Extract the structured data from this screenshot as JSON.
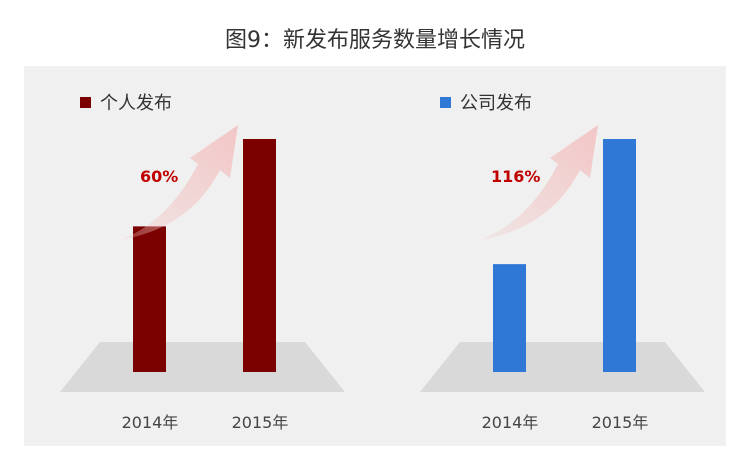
{
  "title": "图9：新发布服务数量增长情况",
  "chart_data": [
    {
      "type": "bar",
      "categories": [
        "2014年",
        "2015年"
      ],
      "series": [
        {
          "name": "个人发布",
          "values": [
            1.0,
            1.6
          ],
          "color": "#7b0000"
        }
      ],
      "growth_label": "60%",
      "legend": "top-left",
      "grid": false
    },
    {
      "type": "bar",
      "categories": [
        "2014年",
        "2015年"
      ],
      "series": [
        {
          "name": "公司发布",
          "values": [
            1.0,
            2.16
          ],
          "color": "#2f78d6"
        }
      ],
      "growth_label": "116%",
      "legend": "top-left",
      "grid": false
    }
  ]
}
